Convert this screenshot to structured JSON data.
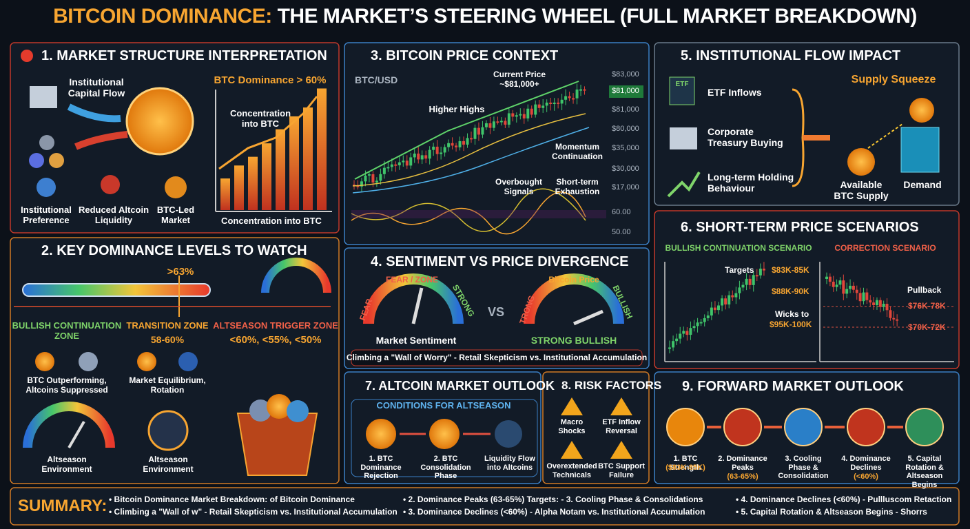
{
  "title": {
    "highlight": "BITCOIN DOMINANCE:",
    "rest": "THE MARKET’S STEERING WHEEL (FULL MARKET BREAKDOWN)"
  },
  "s1": {
    "heading": "1. MARKET STRUCTURE INTERPRETATION",
    "flow": "Institutional Capital Flow",
    "chart_title": "BTC Dominance > 60%",
    "chart_note": "Concentration into BTC",
    "chart_caption": "Concentration into BTC",
    "icons": [
      "Institutional Preference",
      "Reduced Altcoin Liquidity",
      "BTC-Led Market"
    ]
  },
  "s2": {
    "heading": "2. KEY DOMINANCE LEVELS TO WATCH",
    "marker": ">63%",
    "zones": [
      {
        "title": "BULLISH CONTINUATION ZONE",
        "detail": "BTC Outperforming, Altcoins Suppressed",
        "bottom": "Altseason Environment"
      },
      {
        "title": "TRANSITION ZONE",
        "sub": "58-60%",
        "detail": "Market Equilibrium, Rotation",
        "bottom": "Altseason Environment"
      },
      {
        "title": "ALTSEASON TRIGGER ZONE",
        "sub": "<60%, <55%, <50%"
      }
    ]
  },
  "s3": {
    "heading": "3. BITCOIN PRICE CONTEXT",
    "pair": "BTC/USD",
    "current": [
      "Current Price",
      "~$81,000+"
    ],
    "higher_highs": "Higher Highs",
    "momentum": "Momentum Continuation",
    "overbought": "Overbought Signals",
    "exhaustion": "Short-term Exhaustion",
    "price_labels": [
      "$83,000",
      "$81,000",
      "$81,000",
      "$80,000",
      "$35,000",
      "$30,000",
      "$17,000"
    ],
    "osc_labels": [
      "60.00",
      "50.00"
    ]
  },
  "s4": {
    "heading": "4. SENTIMENT VS PRICE DIVERGENCE",
    "gauge1": {
      "left": "FEAR",
      "top": "FEAR / ZONE",
      "right": "STRONG",
      "caption": "Market Sentiment"
    },
    "vs": "VS",
    "gauge2": {
      "left": "TRONG",
      "top": "Bitcoin Price",
      "right": "BULLISH",
      "caption": "STRONG BULLISH"
    },
    "banner": "Climbing a \"Wall of Worry\" - Retail Skepticism vs. Institutional Accumulation"
  },
  "s5": {
    "heading": "5. INSTITUTIONAL FLOW IMPACT",
    "etf_icon": "ETF",
    "items": [
      "ETF Inflows",
      "Corporate Treasury Buying",
      "Long-term Holding Behaviour"
    ],
    "squeeze": "Supply Squeeze",
    "supply": "Available BTC Supply",
    "demand": "Demand"
  },
  "s6": {
    "heading": "6. SHORT-TERM PRICE SCENARIOS",
    "bullish": {
      "title": "BULLISH CONTINUATION SCENARIO",
      "targets": "Targets",
      "levels": [
        "$83K-85K",
        "$88K-90K"
      ],
      "wicks": [
        "Wicks to",
        "$95K-100K"
      ]
    },
    "correction": {
      "title": "CORRECTION SCENARIO",
      "pullback": "Pullback",
      "levels": [
        "$76K-78K",
        "$70K-72K"
      ]
    }
  },
  "s7": {
    "heading": "7. ALTCOIN MARKET OUTLOOK",
    "conditions": "CONDITIONS FOR ALTSEASON",
    "steps": [
      "1. BTC Dominance Rejection",
      "2. BTC Consolidation Phase",
      "Liquidity Flow into Altcoins"
    ]
  },
  "s8": {
    "heading": "8. RISK FACTORS",
    "risks": [
      "Macro Shocks",
      "ETF Inflow Reversal",
      "Overextended Technicals",
      "BTC Support Failure"
    ]
  },
  "s9": {
    "heading": "9. FORWARD MARKET OUTLOOK",
    "steps": [
      {
        "label": "1. BTC Strength",
        "sub": "($83K-85K)"
      },
      {
        "label": "2. Dominance Peaks",
        "sub": "(63-65%)"
      },
      {
        "label": "3. Cooling Phase & Consolidation"
      },
      {
        "label": "4. Dominance Declines",
        "sub": "(<60%)"
      },
      {
        "label": "5. Capital Rotation & Altseason Begins"
      }
    ]
  },
  "summary": {
    "label": "SUMMARY:",
    "items": [
      "• Bitcoin Dominance Market Breakdown: of Bitcoin Dominance",
      "• Climbing a \"Wall of w\" - Retail Skepticism vs. Institutional Accumulation",
      "• 2. Dominance Peaks (63-65%) Targets: - 3. Cooling Phase & Consolidations",
      "• 3. Dominance Declines (<60%) - Alpha Notam vs. Institutional Accumulation",
      "• 4. Dominance Declines (<60%) - Pullluscom Retaction",
      "• 5. Capital Rotation & Altseason Begins - Shorrs"
    ]
  }
}
